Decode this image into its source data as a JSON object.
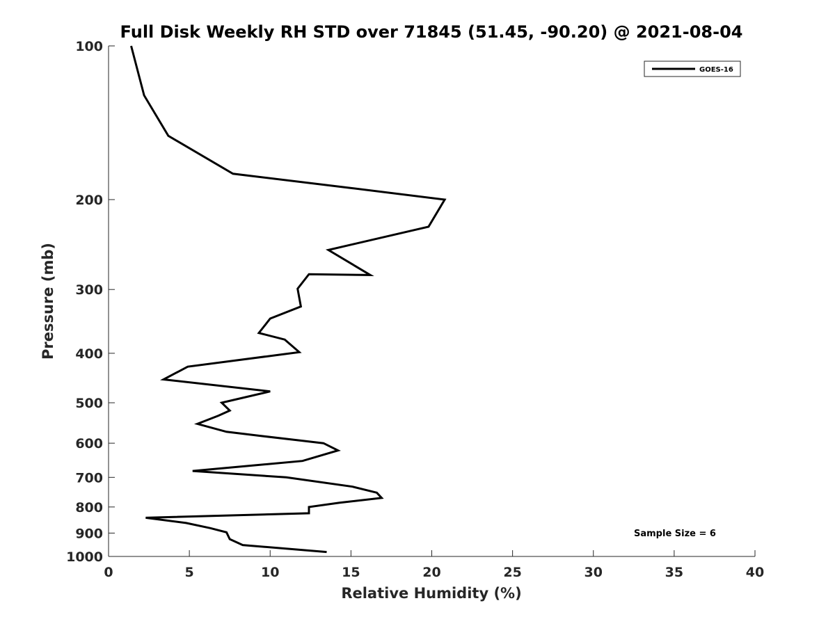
{
  "chart_data": {
    "type": "line",
    "title": "Full Disk Weekly RH STD over 71845 (51.45, -90.20) @ 2021-08-04",
    "xlabel": "Relative Humidity (%)",
    "ylabel": "Pressure (mb)",
    "xlim": [
      0,
      40
    ],
    "ylim": [
      100,
      1000
    ],
    "yscale": "log",
    "reverse_y": true,
    "xticks": [
      0,
      5,
      10,
      15,
      20,
      25,
      30,
      35,
      40
    ],
    "yticks": [
      100,
      200,
      300,
      400,
      500,
      600,
      700,
      800,
      900,
      1000
    ],
    "grid": false,
    "legend_position": "top-right",
    "annotation": "Sample Size = 6",
    "series": [
      {
        "name": "GOES-16",
        "color": "#000000",
        "points": [
          [
            1.4,
            100
          ],
          [
            2.2,
            125
          ],
          [
            3.7,
            150
          ],
          [
            7.7,
            178
          ],
          [
            15.1,
            190
          ],
          [
            20.8,
            200
          ],
          [
            19.8,
            226
          ],
          [
            13.6,
            251
          ],
          [
            16.2,
            281
          ],
          [
            12.4,
            280
          ],
          [
            11.7,
            299
          ],
          [
            11.9,
            324
          ],
          [
            10.0,
            342
          ],
          [
            9.3,
            365
          ],
          [
            10.9,
            376
          ],
          [
            11.8,
            398
          ],
          [
            4.9,
            425
          ],
          [
            3.4,
            450
          ],
          [
            10.0,
            475
          ],
          [
            7.0,
            500
          ],
          [
            7.5,
            518
          ],
          [
            6.8,
            530
          ],
          [
            5.5,
            550
          ],
          [
            7.3,
            570
          ],
          [
            9.3,
            580
          ],
          [
            13.3,
            600
          ],
          [
            14.2,
            620
          ],
          [
            12.0,
            650
          ],
          [
            5.2,
            680
          ],
          [
            11.0,
            700
          ],
          [
            15.1,
            730
          ],
          [
            16.6,
            750
          ],
          [
            16.9,
            768
          ],
          [
            14.3,
            785
          ],
          [
            12.4,
            800
          ],
          [
            12.4,
            823
          ],
          [
            2.3,
            840
          ],
          [
            4.8,
            860
          ],
          [
            6.3,
            880
          ],
          [
            7.3,
            897
          ],
          [
            7.5,
            925
          ],
          [
            8.3,
            950
          ],
          [
            13.5,
            980
          ]
        ]
      }
    ]
  }
}
